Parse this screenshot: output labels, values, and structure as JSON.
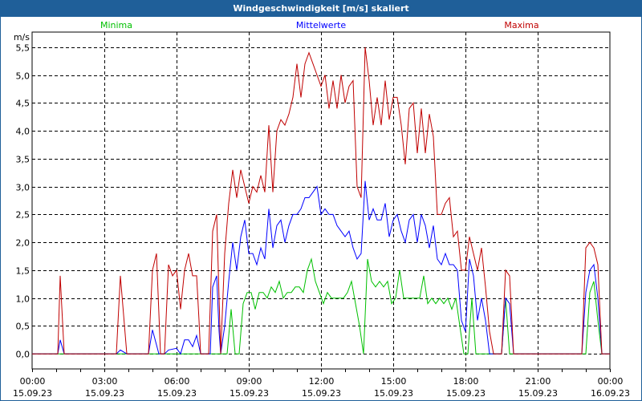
{
  "window": {
    "title": "Windgeschwindigkeit [m/s] skaliert"
  },
  "chart_data": {
    "type": "line",
    "title": "Windgeschwindigkeit [m/s] skaliert",
    "ylabel": "m/s",
    "xlabel": "",
    "ylim": [
      -0.27,
      5.77
    ],
    "xlim_minutes": [
      0,
      1440
    ],
    "grid": true,
    "y_ticks": [
      {
        "value": 0.0,
        "label": "0,0"
      },
      {
        "value": 0.5,
        "label": "0,5"
      },
      {
        "value": 1.0,
        "label": "1,0"
      },
      {
        "value": 1.5,
        "label": "1,5"
      },
      {
        "value": 2.0,
        "label": "2,0"
      },
      {
        "value": 2.5,
        "label": "2,5"
      },
      {
        "value": 3.0,
        "label": "3,0"
      },
      {
        "value": 3.5,
        "label": "3,5"
      },
      {
        "value": 4.0,
        "label": "4,0"
      },
      {
        "value": 4.5,
        "label": "4,5"
      },
      {
        "value": 5.0,
        "label": "5,0"
      },
      {
        "value": 5.5,
        "label": "5,5"
      }
    ],
    "x_ticks": [
      {
        "minute": 0,
        "time": "00:00",
        "date": "15.09.23"
      },
      {
        "minute": 180,
        "time": "03:00",
        "date": "15.09.23"
      },
      {
        "minute": 360,
        "time": "06:00",
        "date": "15.09.23"
      },
      {
        "minute": 540,
        "time": "09:00",
        "date": "15.09.23"
      },
      {
        "minute": 720,
        "time": "12:00",
        "date": "15.09.23"
      },
      {
        "minute": 900,
        "time": "15:00",
        "date": "15.09.23"
      },
      {
        "minute": 1080,
        "time": "18:00",
        "date": "15.09.23"
      },
      {
        "minute": 1260,
        "time": "21:00",
        "date": "15.09.23"
      },
      {
        "minute": 1440,
        "time": "00:00",
        "date": "16.09.23"
      }
    ],
    "series": [
      {
        "name": "Minima",
        "color": "#00c000",
        "legend": "top-left",
        "points": [
          [
            0,
            0
          ],
          [
            486,
            0
          ],
          [
            496,
            0.8
          ],
          [
            506,
            0
          ],
          [
            516,
            0
          ]
        ],
        "block": {
          "from": 526,
          "step": 10,
          "values": [
            0.9,
            1.1,
            1.1,
            0.8,
            1.1,
            1.1,
            1.0,
            1.2,
            1.1,
            1.3,
            1.0,
            1.1,
            1.1,
            1.2,
            1.2,
            1.1,
            1.5,
            1.7,
            1.3,
            1.1,
            0.9,
            1.1,
            1.0,
            1.0,
            1.0,
            1.0,
            1.1,
            1.3,
            0.9,
            0.5,
            0,
            1.7,
            1.3,
            1.2,
            1.3,
            1.2,
            1.3,
            0.9,
            1.0,
            1.5,
            1.0,
            1.0,
            1.0,
            1.0,
            1.0,
            1.4,
            0.9,
            1.0,
            0.9,
            1.0,
            0.9,
            1.0,
            0.8,
            1.0,
            0.5,
            0,
            0,
            1.0,
            0
          ]
        },
        "tail": [
          [
            1170,
            0
          ],
          [
            1180,
            1.0
          ],
          [
            1190,
            0
          ],
          [
            1380,
            0
          ],
          [
            1390,
            1.1
          ],
          [
            1400,
            1.3
          ],
          [
            1410,
            0.6
          ],
          [
            1420,
            0
          ],
          [
            1440,
            0
          ]
        ]
      },
      {
        "name": "Mittelwerte",
        "color": "#0000ff",
        "legend": "top-center",
        "points": [
          [
            0,
            0
          ],
          [
            64,
            0
          ],
          [
            70,
            0.25
          ],
          [
            80,
            0
          ],
          [
            210,
            0
          ],
          [
            220,
            0.07
          ],
          [
            236,
            0
          ],
          [
            290,
            0
          ],
          [
            300,
            0.43
          ],
          [
            316,
            0
          ],
          [
            330,
            0
          ],
          [
            340,
            0.07
          ],
          [
            360,
            0.1
          ],
          [
            370,
            0
          ],
          [
            380,
            0.25
          ],
          [
            390,
            0.25
          ],
          [
            400,
            0.13
          ],
          [
            410,
            0.33
          ],
          [
            420,
            0
          ],
          [
            444,
            0
          ],
          [
            450,
            1.2
          ],
          [
            460,
            1.4
          ],
          [
            466,
            0.4
          ],
          [
            470,
            0
          ],
          [
            480,
            0.5
          ]
        ],
        "block": {
          "from": 490,
          "step": 10,
          "values": [
            1.3,
            2.0,
            1.5,
            2.1,
            2.4,
            1.8,
            1.8,
            1.6,
            1.9,
            1.7,
            2.6,
            1.9,
            2.3,
            2.4,
            2.0,
            2.3,
            2.5,
            2.5,
            2.6,
            2.8,
            2.8,
            2.9,
            3.0,
            2.5,
            2.6,
            2.5,
            2.5,
            2.3,
            2.2,
            2.1,
            2.2,
            1.9,
            1.7,
            1.8,
            3.1,
            2.4,
            2.6,
            2.4,
            2.4,
            2.7,
            2.1,
            2.4,
            2.5,
            2.2,
            2.0,
            2.4,
            2.5,
            2.0,
            2.5,
            2.3,
            1.9,
            2.3,
            1.7,
            1.6,
            1.8,
            1.6,
            1.6,
            1.5,
            0.6,
            0.4,
            1.7,
            1.4,
            0.6,
            1.0,
            0.6,
            0
          ]
        },
        "tail": [
          [
            1170,
            0
          ],
          [
            1180,
            1.0
          ],
          [
            1190,
            0.9
          ],
          [
            1200,
            0
          ],
          [
            1370,
            0
          ],
          [
            1380,
            1.1
          ],
          [
            1390,
            1.5
          ],
          [
            1400,
            1.6
          ],
          [
            1410,
            1.0
          ],
          [
            1420,
            0
          ],
          [
            1440,
            0
          ]
        ]
      },
      {
        "name": "Maxima",
        "color": "#c00000",
        "legend": "top-right",
        "points": [
          [
            0,
            0
          ],
          [
            64,
            0
          ],
          [
            70,
            1.4
          ],
          [
            80,
            0
          ],
          [
            210,
            0
          ],
          [
            220,
            1.4
          ],
          [
            236,
            0
          ],
          [
            290,
            0
          ],
          [
            300,
            1.5
          ],
          [
            310,
            1.8
          ],
          [
            320,
            0
          ],
          [
            330,
            0
          ],
          [
            340,
            1.6
          ],
          [
            350,
            1.4
          ],
          [
            360,
            1.5
          ],
          [
            370,
            0.8
          ],
          [
            380,
            1.5
          ],
          [
            390,
            1.8
          ],
          [
            400,
            1.4
          ],
          [
            410,
            1.4
          ],
          [
            416,
            0.6
          ],
          [
            420,
            0
          ],
          [
            440,
            0
          ],
          [
            450,
            2.2
          ],
          [
            460,
            2.5
          ],
          [
            466,
            1.0
          ],
          [
            470,
            0
          ],
          [
            480,
            1.8
          ]
        ],
        "block": {
          "from": 490,
          "step": 10,
          "values": [
            2.7,
            3.3,
            2.8,
            3.3,
            3.0,
            2.7,
            3.0,
            2.9,
            3.2,
            2.9,
            4.1,
            2.9,
            4.0,
            4.2,
            4.1,
            4.3,
            4.6,
            5.2,
            4.6,
            5.2,
            5.4,
            5.2,
            5.0,
            4.8,
            5.0,
            4.4,
            4.9,
            4.4,
            5.0,
            4.5,
            4.8,
            4.9,
            3.0,
            2.8,
            5.5,
            4.9,
            4.1,
            4.6,
            4.1,
            4.9,
            4.2,
            4.6,
            4.6,
            4.1,
            3.4,
            4.4,
            4.5,
            3.6,
            4.4,
            3.6,
            4.3,
            3.9,
            2.5,
            2.5,
            2.7,
            2.8,
            2.1,
            2.2,
            1.5,
            1.5,
            2.1,
            1.8,
            1.5,
            1.9,
            1.2,
            0.4
          ]
        },
        "tail": [
          [
            1150,
            0
          ],
          [
            1170,
            0
          ],
          [
            1180,
            1.5
          ],
          [
            1190,
            1.4
          ],
          [
            1200,
            0
          ],
          [
            1370,
            0
          ],
          [
            1380,
            1.9
          ],
          [
            1390,
            2.0
          ],
          [
            1400,
            1.9
          ],
          [
            1410,
            1.6
          ],
          [
            1420,
            0
          ],
          [
            1440,
            0
          ]
        ]
      }
    ]
  }
}
